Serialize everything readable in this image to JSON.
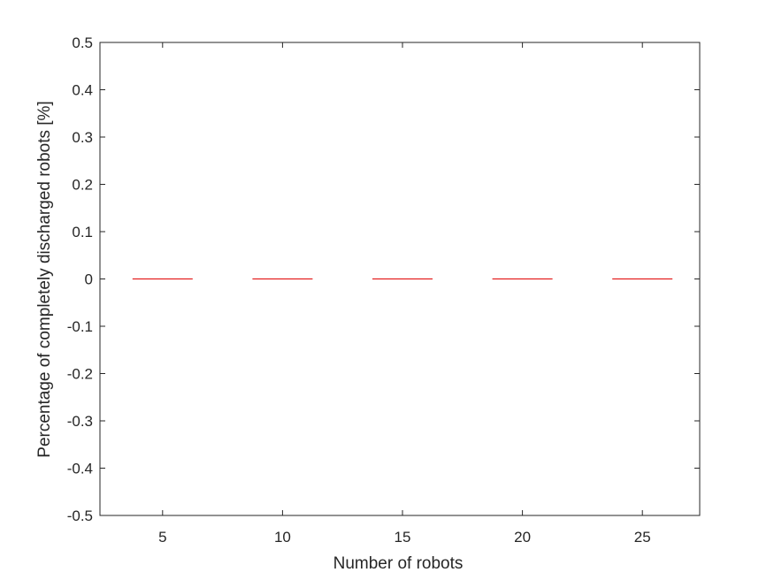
{
  "chart_data": {
    "type": "boxplot",
    "title": "",
    "xlabel": "Number of robots",
    "ylabel": "Percentage of completely discharged robots [%]",
    "categories": [
      "5",
      "10",
      "15",
      "20",
      "25"
    ],
    "values": [
      0,
      0,
      0,
      0,
      0
    ],
    "ylim": [
      -0.5,
      0.5
    ],
    "yticks": [
      "0.5",
      "0.4",
      "0.3",
      "0.2",
      "0.1",
      "0",
      "-0.1",
      "-0.2",
      "-0.3",
      "-0.4",
      "-0.5"
    ],
    "ytick_values": [
      0.5,
      0.4,
      0.3,
      0.2,
      0.1,
      0,
      -0.1,
      -0.2,
      -0.3,
      -0.4,
      -0.5
    ],
    "grid": false,
    "median_color": "#e00000",
    "axis_color": "#262626"
  }
}
